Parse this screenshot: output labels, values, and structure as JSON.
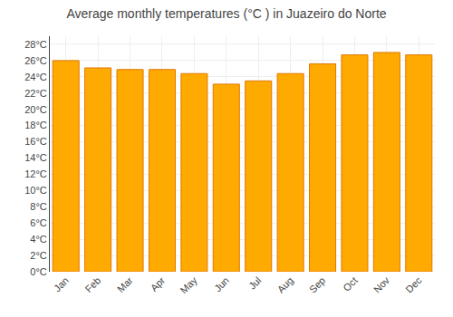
{
  "chart_data": {
    "type": "bar",
    "title": "Average monthly temperatures (°C ) in Juazeiro do Norte",
    "categories": [
      "Jan",
      "Feb",
      "Mar",
      "Apr",
      "May",
      "Jun",
      "Jul",
      "Aug",
      "Sep",
      "Oct",
      "Nov",
      "Dec"
    ],
    "values": [
      26.0,
      25.1,
      24.9,
      24.9,
      24.4,
      23.1,
      23.5,
      24.4,
      25.6,
      26.7,
      27.0,
      26.7
    ],
    "color": "#FFAA00",
    "ylim": [
      0,
      29
    ],
    "yticks": [
      {
        "value": 0,
        "label": "0°C"
      },
      {
        "value": 2,
        "label": "2°C"
      },
      {
        "value": 4,
        "label": "4°C"
      },
      {
        "value": 6,
        "label": "6°C"
      },
      {
        "value": 8,
        "label": "8°C"
      },
      {
        "value": 10,
        "label": "10°C"
      },
      {
        "value": 12,
        "label": "12°C"
      },
      {
        "value": 14,
        "label": "14°C"
      },
      {
        "value": 16,
        "label": "16°C"
      },
      {
        "value": 18,
        "label": "18°C"
      },
      {
        "value": 20,
        "label": "20°C"
      },
      {
        "value": 22,
        "label": "22°C"
      },
      {
        "value": 24,
        "label": "24°C"
      },
      {
        "value": 26,
        "label": "26°C"
      },
      {
        "value": 28,
        "label": "28°C"
      }
    ],
    "grid": true
  }
}
